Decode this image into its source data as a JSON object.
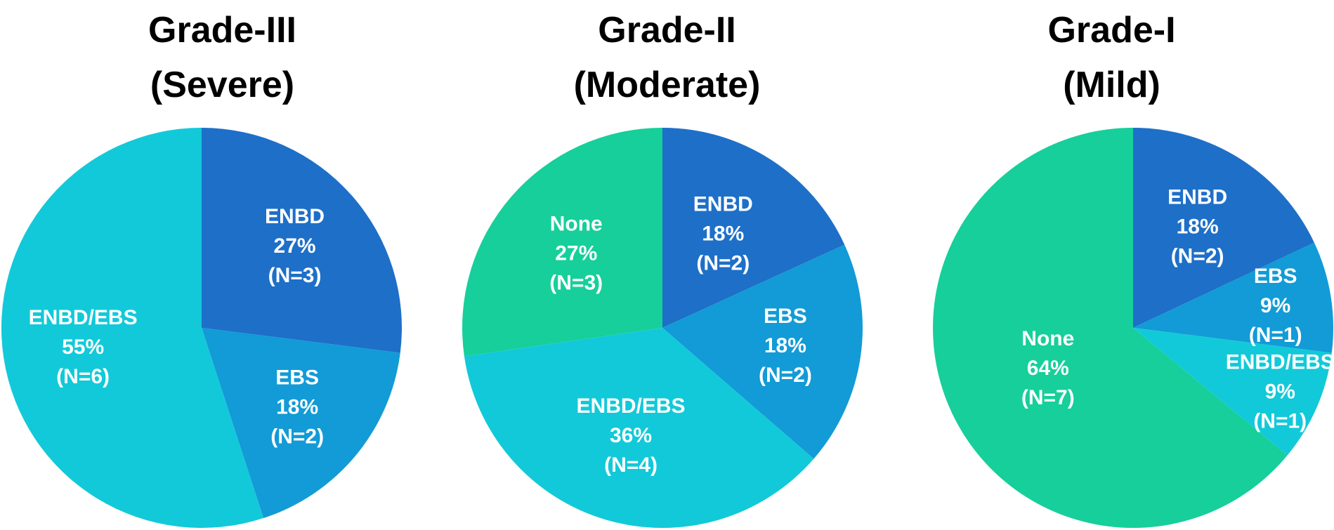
{
  "chart_data": [
    {
      "type": "pie",
      "title_line1": "Grade-III",
      "title_line2": "(Severe)",
      "slices": [
        {
          "label": "ENBD",
          "value": 27,
          "pct": "27%",
          "n": "(N=3)",
          "color": "#1e6fc8"
        },
        {
          "label": "EBS",
          "value": 18,
          "pct": "18%",
          "n": "(N=2)",
          "color": "#129bd6"
        },
        {
          "label": "ENBD/EBS",
          "value": 55,
          "pct": "55%",
          "n": "(N=6)",
          "color": "#12c9d9"
        }
      ]
    },
    {
      "type": "pie",
      "title_line1": "Grade-II",
      "title_line2": "(Moderate)",
      "slices": [
        {
          "label": "ENBD",
          "value": 18,
          "pct": "18%",
          "n": "(N=2)",
          "color": "#1e6fc8"
        },
        {
          "label": "EBS",
          "value": 18,
          "pct": "18%",
          "n": "(N=2)",
          "color": "#129bd6"
        },
        {
          "label": "ENBD/EBS",
          "value": 36,
          "pct": "36%",
          "n": "(N=4)",
          "color": "#12c9d9"
        },
        {
          "label": "None",
          "value": 27,
          "pct": "27%",
          "n": "(N=3)",
          "color": "#16cf9a"
        }
      ]
    },
    {
      "type": "pie",
      "title_line1": "Grade-I",
      "title_line2": "(Mild)",
      "slices": [
        {
          "label": "ENBD",
          "value": 18,
          "pct": "18%",
          "n": "(N=2)",
          "color": "#1e6fc8"
        },
        {
          "label": "EBS",
          "value": 9,
          "pct": "9%",
          "n": "(N=1)",
          "color": "#129bd6"
        },
        {
          "label": "ENBD/EBS",
          "value": 9,
          "pct": "9%",
          "n": "(N=1)",
          "color": "#12c9d9"
        },
        {
          "label": "None",
          "value": 64,
          "pct": "64%",
          "n": "(N=7)",
          "color": "#16cf9a"
        }
      ]
    }
  ]
}
